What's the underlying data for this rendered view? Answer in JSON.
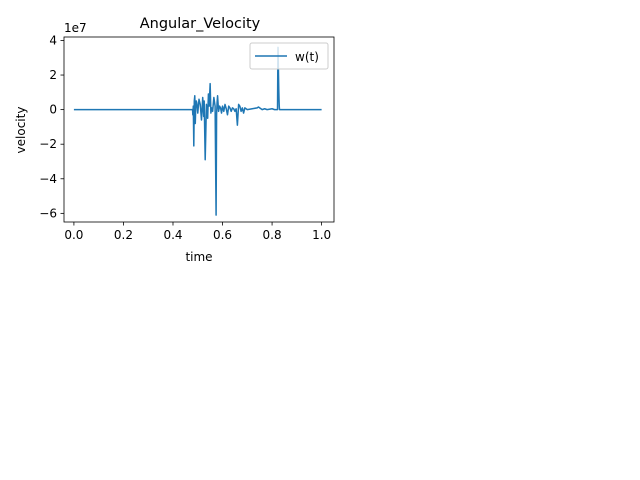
{
  "chart_data": {
    "type": "line",
    "title": "Angular_Velocity",
    "xlabel": "time",
    "ylabel": "velocity",
    "y_offset_label": "1e7",
    "xlim": [
      -0.04,
      1.05
    ],
    "ylim": [
      -6.5,
      4.2
    ],
    "xticks": [
      0.0,
      0.2,
      0.4,
      0.6,
      0.8,
      1.0
    ],
    "xtick_labels": [
      "0.0",
      "0.2",
      "0.4",
      "0.6",
      "0.8",
      "1.0"
    ],
    "yticks": [
      -6,
      -4,
      -2,
      0,
      2,
      4
    ],
    "ytick_labels": [
      "−6",
      "−4",
      "−2",
      "0",
      "2",
      "4"
    ],
    "grid": false,
    "legend_position": "upper-right",
    "series": [
      {
        "name": "w(t)",
        "color": "#1f77b4",
        "x": [
          0.0,
          0.15,
          0.35,
          0.479,
          0.48,
          0.482,
          0.484,
          0.486,
          0.488,
          0.49,
          0.492,
          0.494,
          0.496,
          0.5,
          0.505,
          0.51,
          0.515,
          0.52,
          0.524,
          0.526,
          0.53,
          0.535,
          0.54,
          0.543,
          0.546,
          0.55,
          0.553,
          0.556,
          0.56,
          0.565,
          0.57,
          0.574,
          0.576,
          0.578,
          0.58,
          0.584,
          0.588,
          0.592,
          0.596,
          0.6,
          0.605,
          0.61,
          0.615,
          0.62,
          0.625,
          0.63,
          0.635,
          0.64,
          0.645,
          0.65,
          0.655,
          0.66,
          0.665,
          0.67,
          0.675,
          0.68,
          0.685,
          0.69,
          0.7,
          0.72,
          0.74,
          0.745,
          0.75,
          0.755,
          0.76,
          0.77,
          0.78,
          0.8,
          0.81,
          0.822,
          0.823,
          0.824,
          0.825,
          0.826,
          0.827,
          0.828,
          0.829,
          0.83,
          0.85,
          0.9,
          1.0
        ],
        "y": [
          0.0,
          0.0,
          0.0,
          0.0,
          -0.3,
          0.2,
          -2.1,
          0.5,
          0.8,
          -0.8,
          0.3,
          0.5,
          0.4,
          -0.2,
          0.6,
          0.3,
          -0.6,
          0.7,
          -0.4,
          0.5,
          -2.9,
          0.3,
          -0.5,
          0.9,
          0.2,
          1.5,
          -0.2,
          0.1,
          -0.1,
          0.7,
          0.2,
          -6.1,
          -0.3,
          0.4,
          0.8,
          -0.1,
          0.2,
          0.1,
          -0.2,
          0.2,
          -0.1,
          0.3,
          0.05,
          -0.3,
          0.2,
          0.1,
          -0.1,
          0.1,
          0.05,
          -0.1,
          0.05,
          -0.9,
          0.3,
          0.2,
          -0.1,
          0.1,
          -0.2,
          0.1,
          0.0,
          0.05,
          0.1,
          0.15,
          0.1,
          0.05,
          0.0,
          0.05,
          0.0,
          0.05,
          0.0,
          0.0,
          2.2,
          3.6,
          2.8,
          2.0,
          1.2,
          0.6,
          0.2,
          0.0,
          0.0,
          0.0,
          0.0
        ]
      }
    ]
  }
}
